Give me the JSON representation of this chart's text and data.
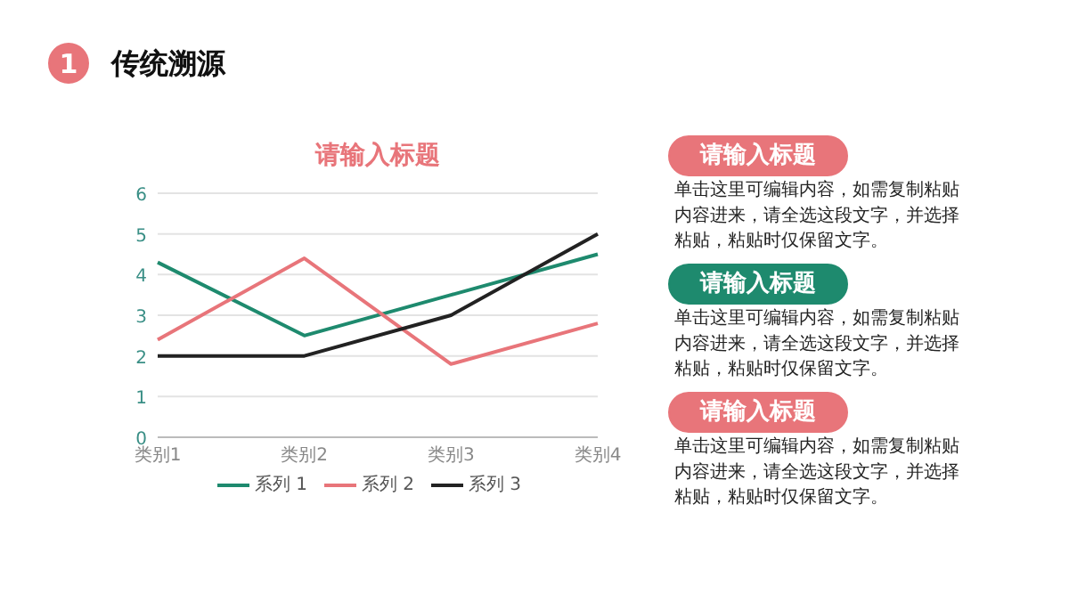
{
  "chart_data": {
    "type": "line",
    "title": "请输入标题",
    "categories": [
      "类别1",
      "类别2",
      "类别3",
      "类别4"
    ],
    "series": [
      {
        "name": "系列 1",
        "color": "#1e8a6e",
        "values": [
          4.3,
          2.5,
          3.5,
          4.5
        ]
      },
      {
        "name": "系列 2",
        "color": "#e8757a",
        "values": [
          2.4,
          4.4,
          1.8,
          2.8
        ]
      },
      {
        "name": "系列 3",
        "color": "#222222",
        "values": [
          2,
          2,
          3,
          5
        ]
      }
    ],
    "ylim": [
      0,
      6
    ],
    "yticks": [
      0,
      1,
      2,
      3,
      4,
      5,
      6
    ],
    "grid": "y",
    "legend": "bottom",
    "marker": "none",
    "line_style": "solid",
    "annotations": [
      "1",
      "传统溯源",
      "请输入标题",
      "单击这里可编辑内容，如需复制粘贴内容进来，请全选这段文字，并选择粘贴，粘贴时仅保留文字。",
      "请输入标题",
      "单击这里可编辑内容，如需复制粘贴内容进来，请全选这段文字，并选择粘贴，粘贴时仅保留文字。",
      "请输入标题",
      "单击这里可编辑内容，如需复制粘贴内容进来，请全选这段文字，并选择粘贴，粘贴时仅保留文字。"
    ]
  }
}
